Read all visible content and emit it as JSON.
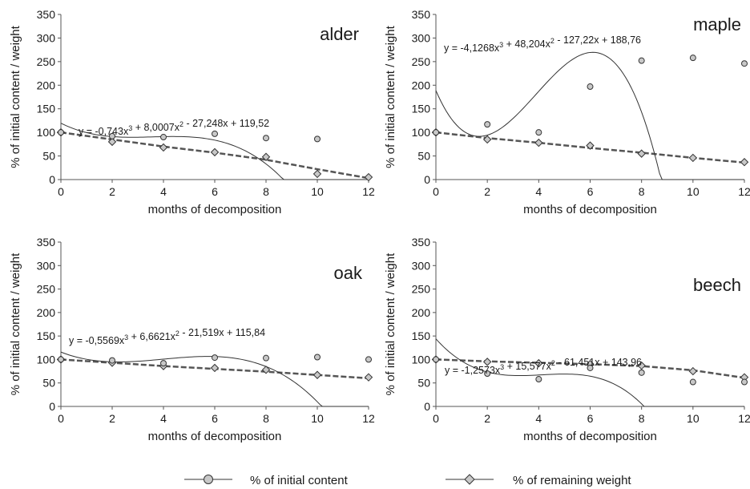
{
  "chart_data": [
    {
      "type": "scatter",
      "label": "alder",
      "xlabel": "months of decomposition",
      "ylabel": "% of initial content / weight",
      "xlim": [
        0,
        12
      ],
      "ylim": [
        0,
        350
      ],
      "xticks": [
        "0",
        "2",
        "4",
        "6",
        "8",
        "10",
        "12"
      ],
      "yticks": [
        "0",
        "50",
        "100",
        "150",
        "200",
        "250",
        "300",
        "350"
      ],
      "series": [
        {
          "name": "% of initial content",
          "x": [
            0,
            2,
            4,
            6,
            8,
            10
          ],
          "values": [
            100,
            92,
            90,
            97,
            88,
            86
          ]
        },
        {
          "name": "% of remaining weight",
          "x": [
            0,
            2,
            4,
            6,
            8,
            10,
            12
          ],
          "values": [
            100,
            80,
            68,
            58,
            48,
            12,
            5
          ]
        }
      ],
      "trend": {
        "a3": -0.743,
        "a2": 8.0007,
        "a1": -27.248,
        "a0": 119.52
      },
      "weight_trend": [
        100,
        85,
        70,
        57,
        42,
        22,
        3
      ],
      "equation": {
        "pre": "y = -0,743x",
        "p1": "3",
        "mid": " + 8,0007x",
        "p2": "2",
        "post": " - 27,248x + 119,52"
      }
    },
    {
      "type": "scatter",
      "label": "maple",
      "xlabel": "months of decomposition",
      "ylabel": "% of initial content / weight",
      "xlim": [
        0,
        12
      ],
      "ylim": [
        0,
        350
      ],
      "xticks": [
        "0",
        "2",
        "4",
        "6",
        "8",
        "10",
        "12"
      ],
      "yticks": [
        "0",
        "50",
        "100",
        "150",
        "200",
        "250",
        "300",
        "350"
      ],
      "series": [
        {
          "name": "% of initial content",
          "x": [
            0,
            2,
            4,
            6,
            8,
            10,
            12
          ],
          "values": [
            100,
            117,
            100,
            197,
            252,
            258,
            246
          ]
        },
        {
          "name": "% of remaining weight",
          "x": [
            0,
            2,
            4,
            6,
            8,
            10,
            12
          ],
          "values": [
            100,
            85,
            78,
            72,
            55,
            46,
            37
          ]
        }
      ],
      "trend": {
        "a3": -4.1268,
        "a2": 48.204,
        "a1": -127.22,
        "a0": 188.76
      },
      "weight_trend": [
        100,
        88,
        78,
        67,
        57,
        46,
        36
      ],
      "equation": {
        "pre": "y = -4,1268x",
        "p1": "3",
        "mid": " + 48,204x",
        "p2": "2",
        "post": " - 127,22x + 188,76"
      }
    },
    {
      "type": "scatter",
      "label": "oak",
      "xlabel": "months of decomposition",
      "ylabel": "% of initial content / weight",
      "xlim": [
        0,
        12
      ],
      "ylim": [
        0,
        350
      ],
      "xticks": [
        "0",
        "2",
        "4",
        "6",
        "8",
        "10",
        "12"
      ],
      "yticks": [
        "0",
        "50",
        "100",
        "150",
        "200",
        "250",
        "300",
        "350"
      ],
      "series": [
        {
          "name": "% of initial content",
          "x": [
            0,
            2,
            4,
            6,
            8,
            10,
            12
          ],
          "values": [
            100,
            98,
            92,
            104,
            103,
            105,
            100
          ]
        },
        {
          "name": "% of remaining weight",
          "x": [
            0,
            2,
            4,
            6,
            8,
            10,
            12
          ],
          "values": [
            100,
            93,
            86,
            82,
            78,
            67,
            62
          ]
        }
      ],
      "trend": {
        "a3": -0.5569,
        "a2": 6.6621,
        "a1": -21.519,
        "a0": 115.84
      },
      "weight_trend": [
        100,
        93,
        86,
        80,
        74,
        67,
        60
      ],
      "equation": {
        "pre": "y = -0,5569x",
        "p1": "3",
        "mid": " + 6,6621x",
        "p2": "2",
        "post": " - 21,519x + 115,84"
      }
    },
    {
      "type": "scatter",
      "label": "beech",
      "xlabel": "months of decomposition",
      "ylabel": "% of initial content / weight",
      "xlim": [
        0,
        12
      ],
      "ylim": [
        0,
        350
      ],
      "xticks": [
        "0",
        "2",
        "4",
        "6",
        "8",
        "10",
        "12"
      ],
      "yticks": [
        "0",
        "50",
        "100",
        "150",
        "200",
        "250",
        "300",
        "350"
      ],
      "series": [
        {
          "name": "% of initial content",
          "x": [
            0,
            2,
            4,
            6,
            8,
            10,
            12
          ],
          "values": [
            100,
            70,
            58,
            82,
            72,
            52,
            52
          ]
        },
        {
          "name": "% of remaining weight",
          "x": [
            0,
            2,
            4,
            6,
            8,
            10,
            12
          ],
          "values": [
            100,
            95,
            92,
            90,
            87,
            75,
            62
          ]
        }
      ],
      "trend": {
        "a3": -1.2573,
        "a2": 15.577,
        "a1": -61.451,
        "a0": 143.96
      },
      "weight_trend": [
        100,
        96,
        93,
        90,
        86,
        77,
        61
      ],
      "equation": {
        "pre": "y = -1,2573x",
        "p1": "3",
        "mid": " + 15,577x",
        "p2": "2",
        "post": " - 61,451x + 143,96"
      }
    }
  ],
  "legend": {
    "items": [
      "% of initial content",
      "% of remaining weight"
    ]
  },
  "colors": {
    "content_marker_fill": "#c8c8c8",
    "weight_marker_fill": "#c8c8c8",
    "trend_line": "#333333",
    "weight_line": "#555555",
    "axis": "#555555"
  }
}
